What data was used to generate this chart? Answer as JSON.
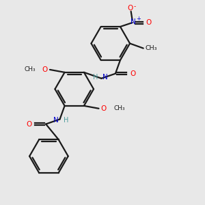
{
  "background_color": "#e8e8e8",
  "bond_color": "#1a1a1a",
  "N_color": "#4a9a9a",
  "N_color2": "#0000cc",
  "O_color": "#ff0000",
  "figsize": [
    3.0,
    3.0
  ],
  "dpi": 100,
  "xlim": [
    -2.5,
    3.5
  ],
  "ylim": [
    -3.8,
    3.8
  ]
}
